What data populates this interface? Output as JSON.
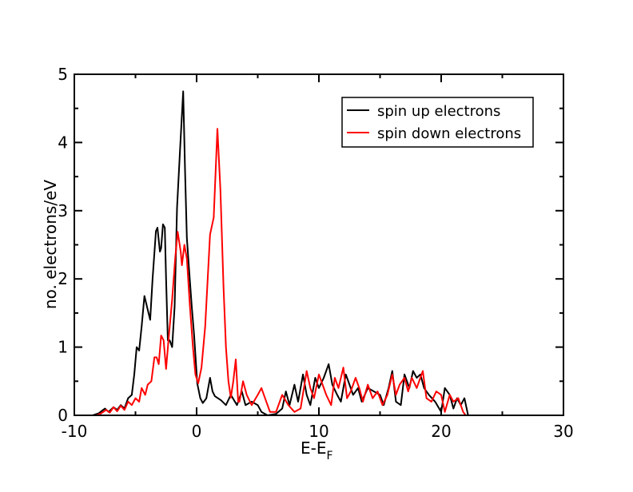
{
  "chart_data": {
    "type": "line",
    "title": "",
    "xlabel": "E-E",
    "xlabel_sub": "F",
    "ylabel": "no. electrons/eV",
    "xlim": [
      -10,
      30
    ],
    "ylim": [
      0,
      5
    ],
    "xticks": [
      -10,
      0,
      10,
      20,
      30
    ],
    "yticks": [
      0,
      1,
      2,
      3,
      4,
      5
    ],
    "grid": false,
    "legend_position": "top-right",
    "series": [
      {
        "name": "spin up electrons",
        "color": "#000000",
        "points": [
          [
            -8.5,
            0
          ],
          [
            -8,
            0.03
          ],
          [
            -7.5,
            0.1
          ],
          [
            -7.2,
            0.05
          ],
          [
            -6.8,
            0.12
          ],
          [
            -6.5,
            0.08
          ],
          [
            -6.2,
            0.15
          ],
          [
            -5.9,
            0.1
          ],
          [
            -5.6,
            0.25
          ],
          [
            -5.3,
            0.3
          ],
          [
            -5.1,
            0.6
          ],
          [
            -4.9,
            1.0
          ],
          [
            -4.7,
            0.95
          ],
          [
            -4.5,
            1.3
          ],
          [
            -4.27,
            1.75
          ],
          [
            -4.0,
            1.55
          ],
          [
            -3.8,
            1.4
          ],
          [
            -3.6,
            2.0
          ],
          [
            -3.33,
            2.7
          ],
          [
            -3.2,
            2.75
          ],
          [
            -3.0,
            2.4
          ],
          [
            -2.9,
            2.45
          ],
          [
            -2.75,
            2.8
          ],
          [
            -2.6,
            2.75
          ],
          [
            -2.5,
            2.0
          ],
          [
            -2.35,
            1.1
          ],
          [
            -2.2,
            1.1
          ],
          [
            -2.0,
            1.0
          ],
          [
            -1.8,
            1.6
          ],
          [
            -1.6,
            3.04
          ],
          [
            -1.35,
            3.9
          ],
          [
            -1.1,
            4.75
          ],
          [
            -0.95,
            3.6
          ],
          [
            -0.8,
            2.6
          ],
          [
            -0.6,
            2.1
          ],
          [
            -0.4,
            1.6
          ],
          [
            -0.2,
            1.17
          ],
          [
            0.05,
            0.47
          ],
          [
            0.3,
            0.25
          ],
          [
            0.5,
            0.18
          ],
          [
            0.8,
            0.25
          ],
          [
            1.1,
            0.55
          ],
          [
            1.3,
            0.35
          ],
          [
            1.5,
            0.28
          ],
          [
            2.0,
            0.22
          ],
          [
            2.4,
            0.15
          ],
          [
            2.8,
            0.3
          ],
          [
            3.3,
            0.15
          ],
          [
            3.7,
            0.35
          ],
          [
            4,
            0.15
          ],
          [
            4.5,
            0.2
          ],
          [
            5,
            0.15
          ],
          [
            5.3,
            0.05
          ],
          [
            5.8,
            0.0
          ],
          [
            6.5,
            0.02
          ],
          [
            7,
            0.1
          ],
          [
            7.3,
            0.35
          ],
          [
            7.6,
            0.15
          ],
          [
            8,
            0.45
          ],
          [
            8.3,
            0.2
          ],
          [
            8.7,
            0.6
          ],
          [
            9,
            0.3
          ],
          [
            9.3,
            0.15
          ],
          [
            9.7,
            0.55
          ],
          [
            10,
            0.4
          ],
          [
            10.4,
            0.55
          ],
          [
            10.8,
            0.75
          ],
          [
            11.1,
            0.45
          ],
          [
            11.5,
            0.3
          ],
          [
            11.8,
            0.2
          ],
          [
            12.2,
            0.6
          ],
          [
            12.5,
            0.45
          ],
          [
            12.8,
            0.3
          ],
          [
            13.2,
            0.4
          ],
          [
            13.5,
            0.2
          ],
          [
            14,
            0.4
          ],
          [
            14.5,
            0.35
          ],
          [
            15,
            0.3
          ],
          [
            15.3,
            0.15
          ],
          [
            15.7,
            0.4
          ],
          [
            16,
            0.65
          ],
          [
            16.3,
            0.2
          ],
          [
            16.7,
            0.15
          ],
          [
            17,
            0.6
          ],
          [
            17.4,
            0.4
          ],
          [
            17.7,
            0.65
          ],
          [
            18,
            0.55
          ],
          [
            18.3,
            0.6
          ],
          [
            18.6,
            0.4
          ],
          [
            19,
            0.3
          ],
          [
            19.5,
            0.2
          ],
          [
            20,
            0.05
          ],
          [
            20.3,
            0.4
          ],
          [
            20.7,
            0.3
          ],
          [
            21,
            0.1
          ],
          [
            21.3,
            0.25
          ],
          [
            21.6,
            0.15
          ],
          [
            21.9,
            0.25
          ],
          [
            22.2,
            0.0
          ]
        ]
      },
      {
        "name": "spin down electrons",
        "color": "#ff0000",
        "points": [
          [
            -8.2,
            0
          ],
          [
            -7.8,
            0.03
          ],
          [
            -7.4,
            0.08
          ],
          [
            -7.1,
            0.04
          ],
          [
            -6.8,
            0.12
          ],
          [
            -6.5,
            0.06
          ],
          [
            -6.2,
            0.14
          ],
          [
            -5.9,
            0.08
          ],
          [
            -5.6,
            0.2
          ],
          [
            -5.3,
            0.15
          ],
          [
            -5.0,
            0.25
          ],
          [
            -4.7,
            0.2
          ],
          [
            -4.5,
            0.4
          ],
          [
            -4.2,
            0.3
          ],
          [
            -4.0,
            0.45
          ],
          [
            -3.7,
            0.5
          ],
          [
            -3.45,
            0.85
          ],
          [
            -3.27,
            0.85
          ],
          [
            -3.1,
            0.75
          ],
          [
            -2.9,
            1.17
          ],
          [
            -2.7,
            1.1
          ],
          [
            -2.5,
            0.68
          ],
          [
            -2.3,
            1.1
          ],
          [
            -2.0,
            1.7
          ],
          [
            -1.75,
            2.3
          ],
          [
            -1.55,
            2.69
          ],
          [
            -1.3,
            2.4
          ],
          [
            -1.2,
            2.2
          ],
          [
            -1.0,
            2.5
          ],
          [
            -0.8,
            2.3
          ],
          [
            -0.55,
            1.6
          ],
          [
            -0.3,
            1.0
          ],
          [
            -0.1,
            0.6
          ],
          [
            0.13,
            0.47
          ],
          [
            0.4,
            0.7
          ],
          [
            0.7,
            1.3
          ],
          [
            1.1,
            2.65
          ],
          [
            1.4,
            2.9
          ],
          [
            1.7,
            4.2
          ],
          [
            1.95,
            3.3
          ],
          [
            2.2,
            1.87
          ],
          [
            2.4,
            1.0
          ],
          [
            2.6,
            0.5
          ],
          [
            2.8,
            0.26
          ],
          [
            3.0,
            0.5
          ],
          [
            3.2,
            0.82
          ],
          [
            3.4,
            0.2
          ],
          [
            3.5,
            0.2
          ],
          [
            3.8,
            0.5
          ],
          [
            4.1,
            0.3
          ],
          [
            4.5,
            0.15
          ],
          [
            5,
            0.3
          ],
          [
            5.3,
            0.4
          ],
          [
            5.7,
            0.2
          ],
          [
            6,
            0.05
          ],
          [
            6.5,
            0.05
          ],
          [
            7,
            0.3
          ],
          [
            7.5,
            0.15
          ],
          [
            8,
            0.05
          ],
          [
            8.5,
            0.1
          ],
          [
            9,
            0.65
          ],
          [
            9.3,
            0.4
          ],
          [
            9.6,
            0.25
          ],
          [
            10,
            0.6
          ],
          [
            10.3,
            0.45
          ],
          [
            10.6,
            0.3
          ],
          [
            11,
            0.15
          ],
          [
            11.3,
            0.55
          ],
          [
            11.6,
            0.4
          ],
          [
            12,
            0.7
          ],
          [
            12.3,
            0.25
          ],
          [
            12.6,
            0.35
          ],
          [
            13,
            0.55
          ],
          [
            13.3,
            0.4
          ],
          [
            13.6,
            0.2
          ],
          [
            14,
            0.45
          ],
          [
            14.4,
            0.25
          ],
          [
            14.8,
            0.35
          ],
          [
            15.2,
            0.15
          ],
          [
            15.6,
            0.3
          ],
          [
            16,
            0.6
          ],
          [
            16.3,
            0.3
          ],
          [
            16.6,
            0.45
          ],
          [
            17,
            0.55
          ],
          [
            17.3,
            0.35
          ],
          [
            17.6,
            0.55
          ],
          [
            18,
            0.4
          ],
          [
            18.5,
            0.65
          ],
          [
            18.8,
            0.25
          ],
          [
            19.2,
            0.2
          ],
          [
            19.6,
            0.35
          ],
          [
            20,
            0.3
          ],
          [
            20.3,
            0.05
          ],
          [
            20.7,
            0.3
          ],
          [
            21,
            0.2
          ],
          [
            21.4,
            0.25
          ],
          [
            21.8,
            0.05
          ],
          [
            22,
            0.0
          ]
        ]
      }
    ]
  }
}
